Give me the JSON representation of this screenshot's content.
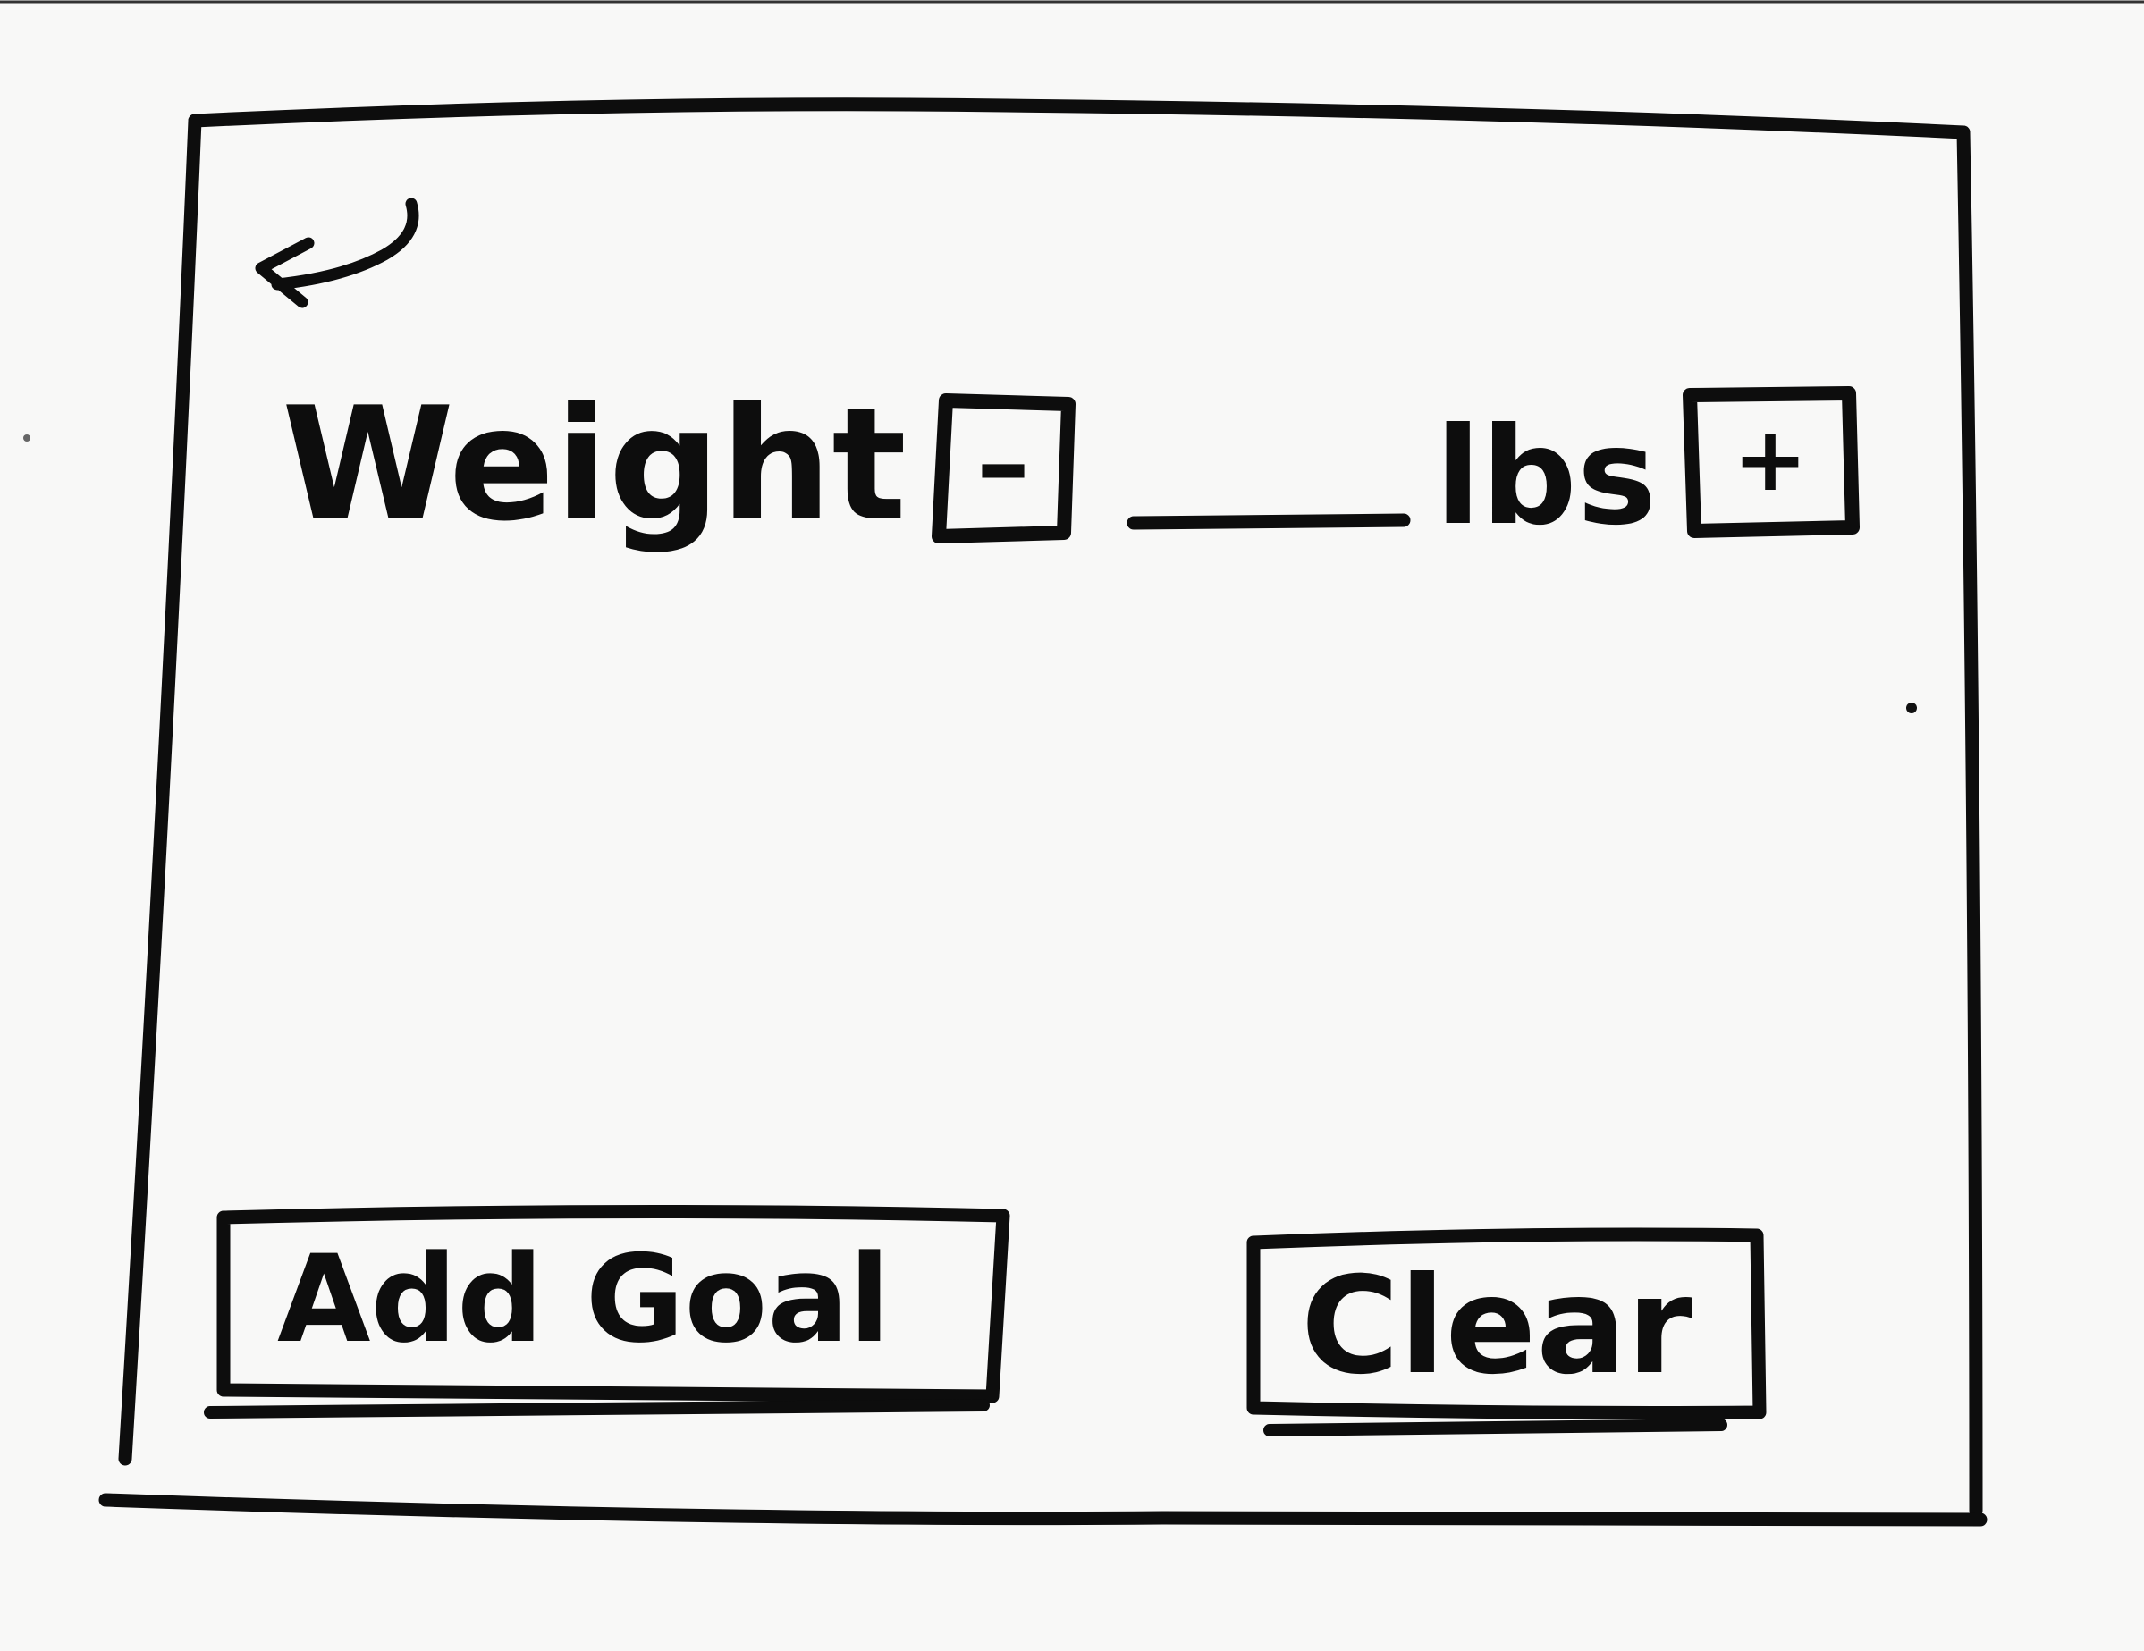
{
  "form": {
    "field_label": "Weight",
    "unit": "lbs",
    "value": ""
  },
  "buttons": {
    "decrement_label": "–",
    "increment_label": "+",
    "add_goal_label": "Add Goal",
    "clear_label": "Clear"
  },
  "icons": {
    "back": "back-arrow-icon"
  },
  "colors": {
    "ink": "#0d0d0d",
    "paper": "#f8f8f7"
  }
}
